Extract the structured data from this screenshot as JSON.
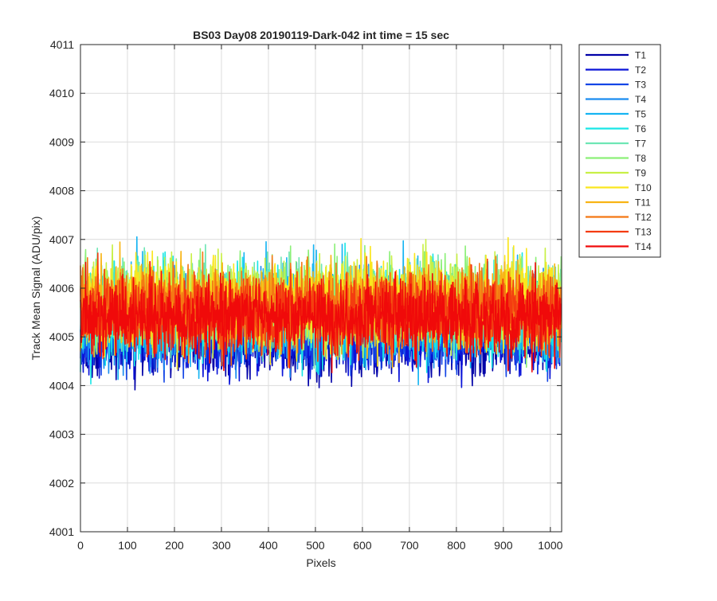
{
  "chart_data": {
    "type": "line",
    "title": "BS03 Day08 20190119-Dark-042 int time = 15 sec",
    "xlabel": "Pixels",
    "ylabel": "Track Mean Signal (ADU/pix)",
    "xlim": [
      0,
      1024
    ],
    "ylim": [
      4001,
      4011
    ],
    "xticks": [
      0,
      100,
      200,
      300,
      400,
      500,
      600,
      700,
      800,
      900,
      1000
    ],
    "yticks": [
      4001,
      4002,
      4003,
      4004,
      4005,
      4006,
      4007,
      4008,
      4009,
      4010,
      4011
    ],
    "grid": true,
    "legend_position": "outside-right-top",
    "points_per_series": 1024,
    "series": [
      {
        "name": "T1",
        "color": "#0000a8",
        "mean": 4004.9,
        "spread": 0.7
      },
      {
        "name": "T2",
        "color": "#0a14d8",
        "mean": 4005.0,
        "spread": 0.7
      },
      {
        "name": "T3",
        "color": "#1446e6",
        "mean": 4005.1,
        "spread": 0.7
      },
      {
        "name": "T4",
        "color": "#1a8cf0",
        "mean": 4005.4,
        "spread": 0.85
      },
      {
        "name": "T5",
        "color": "#16b4f2",
        "mean": 4005.5,
        "spread": 0.9
      },
      {
        "name": "T6",
        "color": "#18e6e6",
        "mean": 4005.5,
        "spread": 0.9
      },
      {
        "name": "T7",
        "color": "#6ee6b4",
        "mean": 4005.6,
        "spread": 0.88
      },
      {
        "name": "T8",
        "color": "#8cf078",
        "mean": 4005.7,
        "spread": 0.88
      },
      {
        "name": "T9",
        "color": "#c8f046",
        "mean": 4005.7,
        "spread": 0.85
      },
      {
        "name": "T10",
        "color": "#fae61e",
        "mean": 4005.7,
        "spread": 0.85
      },
      {
        "name": "T11",
        "color": "#f8b414",
        "mean": 4005.6,
        "spread": 0.82
      },
      {
        "name": "T12",
        "color": "#f47814",
        "mean": 4005.6,
        "spread": 0.8
      },
      {
        "name": "T13",
        "color": "#f43c10",
        "mean": 4005.5,
        "spread": 0.75
      },
      {
        "name": "T14",
        "color": "#f00a0a",
        "mean": 4005.4,
        "spread": 0.72
      }
    ]
  }
}
